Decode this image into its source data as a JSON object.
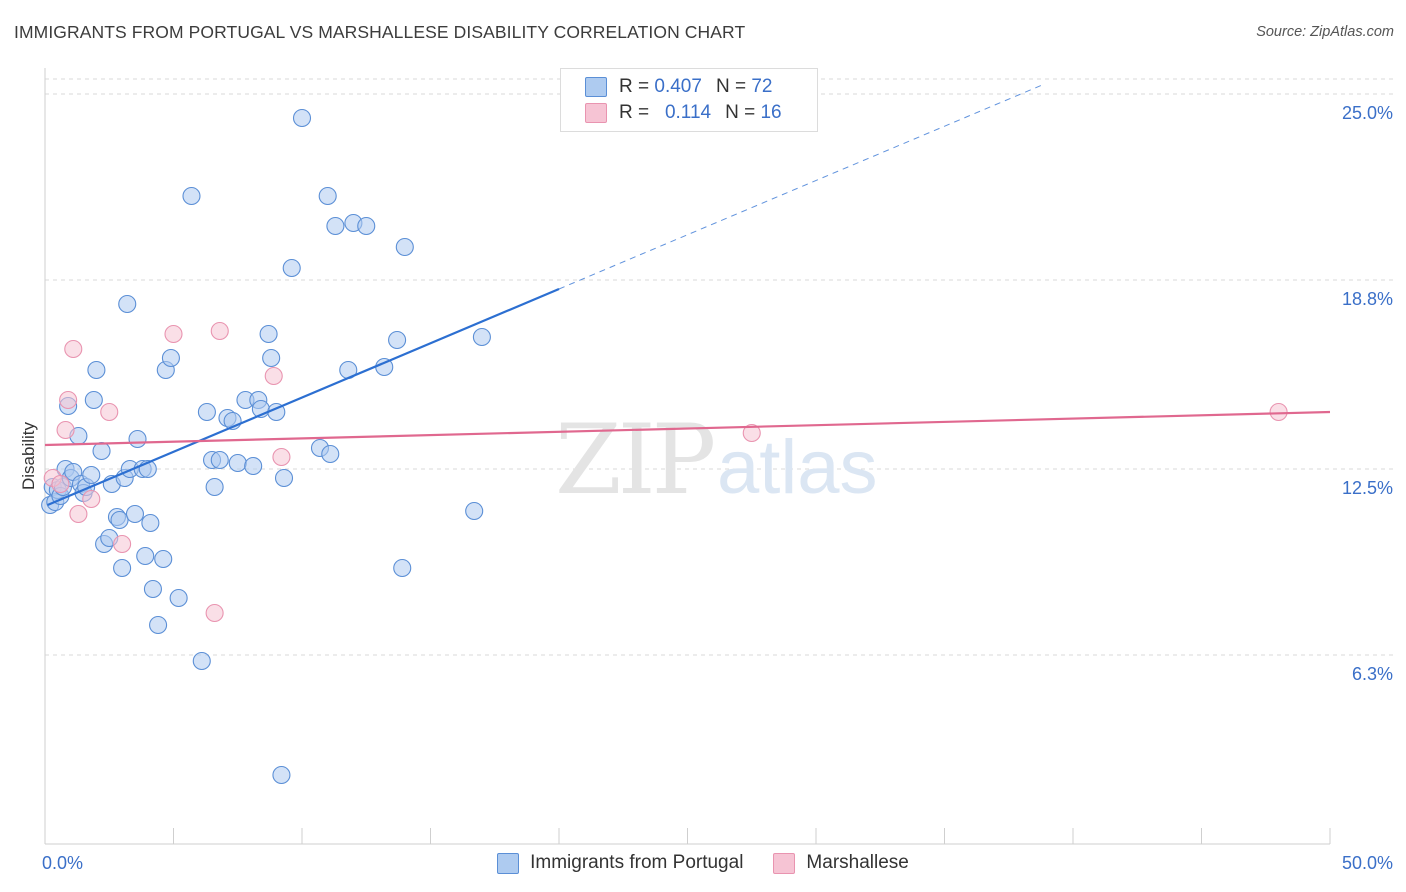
{
  "header": {
    "title": "IMMIGRANTS FROM PORTUGAL VS MARSHALLESE DISABILITY CORRELATION CHART",
    "source": "Source: ZipAtlas.com"
  },
  "legend_top": {
    "rows": [
      {
        "r_label": "R =",
        "r_value": "0.407",
        "n_label": "N =",
        "n_value": "72"
      },
      {
        "r_label": "R =",
        "r_value": "0.114",
        "n_label": "N =",
        "n_value": "16"
      }
    ]
  },
  "watermark": {
    "zip": "ZIP",
    "atlas": "atlas"
  },
  "colors": {
    "blue_fill": "#aecbf0",
    "blue_stroke": "#5b8fd6",
    "blue_line": "#2c6fd1",
    "pink_fill": "#f6c4d4",
    "pink_stroke": "#e994b0",
    "pink_line": "#e0688f",
    "grid": "#d9d9d9",
    "tick_label": "#3a6fc8"
  },
  "chart_data": {
    "type": "scatter",
    "title": "IMMIGRANTS FROM PORTUGAL VS MARSHALLESE DISABILITY CORRELATION CHART",
    "xlabel": "",
    "ylabel": "Disability",
    "xlim": [
      0,
      50
    ],
    "ylim": [
      0,
      25.5
    ],
    "x_tick_labels": [
      "0.0%",
      "50.0%"
    ],
    "y_ticks": [
      6.3,
      12.5,
      18.8,
      25.0
    ],
    "y_tick_labels": [
      "6.3%",
      "12.5%",
      "18.8%",
      "25.0%"
    ],
    "grid": "horizontal dashed",
    "series": [
      {
        "name": "Immigrants from Portugal",
        "color": "blue",
        "r": 0.407,
        "n": 72,
        "trend": {
          "x0": 0.1,
          "y0": 11.3,
          "x1": 20.0,
          "y1": 18.5,
          "dashed_to_x": 38.8,
          "dashed_to_y": 25.3
        },
        "points": [
          [
            0.2,
            11.3
          ],
          [
            0.3,
            11.9
          ],
          [
            0.4,
            11.4
          ],
          [
            0.5,
            11.8
          ],
          [
            0.6,
            11.6
          ],
          [
            0.7,
            11.9
          ],
          [
            0.8,
            12.5
          ],
          [
            0.9,
            14.6
          ],
          [
            1.0,
            12.2
          ],
          [
            1.1,
            12.4
          ],
          [
            1.3,
            13.6
          ],
          [
            1.4,
            12.0
          ],
          [
            1.5,
            11.7
          ],
          [
            1.6,
            11.9
          ],
          [
            1.8,
            12.3
          ],
          [
            1.9,
            14.8
          ],
          [
            2.0,
            15.8
          ],
          [
            2.2,
            13.1
          ],
          [
            2.3,
            10.0
          ],
          [
            2.5,
            10.2
          ],
          [
            2.6,
            12.0
          ],
          [
            2.8,
            10.9
          ],
          [
            2.9,
            10.8
          ],
          [
            3.0,
            9.2
          ],
          [
            3.1,
            12.2
          ],
          [
            3.2,
            18.0
          ],
          [
            3.3,
            12.5
          ],
          [
            3.5,
            11.0
          ],
          [
            3.6,
            13.5
          ],
          [
            3.8,
            12.5
          ],
          [
            3.9,
            9.6
          ],
          [
            4.0,
            12.5
          ],
          [
            4.1,
            10.7
          ],
          [
            4.2,
            8.5
          ],
          [
            4.4,
            7.3
          ],
          [
            4.6,
            9.5
          ],
          [
            4.7,
            15.8
          ],
          [
            4.9,
            16.2
          ],
          [
            5.2,
            8.2
          ],
          [
            5.7,
            21.6
          ],
          [
            6.1,
            6.1
          ],
          [
            6.3,
            14.4
          ],
          [
            6.5,
            12.8
          ],
          [
            6.6,
            11.9
          ],
          [
            6.8,
            12.8
          ],
          [
            7.1,
            14.2
          ],
          [
            7.3,
            14.1
          ],
          [
            7.5,
            12.7
          ],
          [
            7.8,
            14.8
          ],
          [
            8.1,
            12.6
          ],
          [
            8.3,
            14.8
          ],
          [
            8.4,
            14.5
          ],
          [
            8.7,
            17.0
          ],
          [
            8.8,
            16.2
          ],
          [
            9.0,
            14.4
          ],
          [
            9.2,
            2.3
          ],
          [
            9.3,
            12.2
          ],
          [
            9.6,
            19.2
          ],
          [
            10.0,
            24.2
          ],
          [
            10.7,
            13.2
          ],
          [
            11.1,
            13.0
          ],
          [
            11.0,
            21.6
          ],
          [
            11.3,
            20.6
          ],
          [
            11.8,
            15.8
          ],
          [
            12.0,
            20.7
          ],
          [
            12.5,
            20.6
          ],
          [
            13.2,
            15.9
          ],
          [
            13.7,
            16.8
          ],
          [
            13.9,
            9.2
          ],
          [
            14.0,
            19.9
          ],
          [
            16.7,
            11.1
          ],
          [
            17.0,
            16.9
          ]
        ]
      },
      {
        "name": "Marshallese",
        "color": "pink",
        "r": 0.114,
        "n": 16,
        "trend": {
          "x0": 0.0,
          "y0": 13.3,
          "x1": 50.0,
          "y1": 14.4
        },
        "points": [
          [
            0.3,
            12.2
          ],
          [
            0.8,
            13.8
          ],
          [
            0.9,
            14.8
          ],
          [
            1.1,
            16.5
          ],
          [
            1.3,
            11.0
          ],
          [
            1.8,
            11.5
          ],
          [
            2.5,
            14.4
          ],
          [
            3.0,
            10.0
          ],
          [
            5.0,
            17.0
          ],
          [
            6.6,
            7.7
          ],
          [
            6.8,
            17.1
          ],
          [
            8.9,
            15.6
          ],
          [
            9.2,
            12.9
          ],
          [
            27.5,
            13.7
          ],
          [
            48.0,
            14.4
          ],
          [
            0.6,
            12.0
          ]
        ]
      }
    ]
  },
  "legend_bottom": {
    "items": [
      {
        "label": "Immigrants from Portugal"
      },
      {
        "label": "Marshallese"
      }
    ]
  }
}
